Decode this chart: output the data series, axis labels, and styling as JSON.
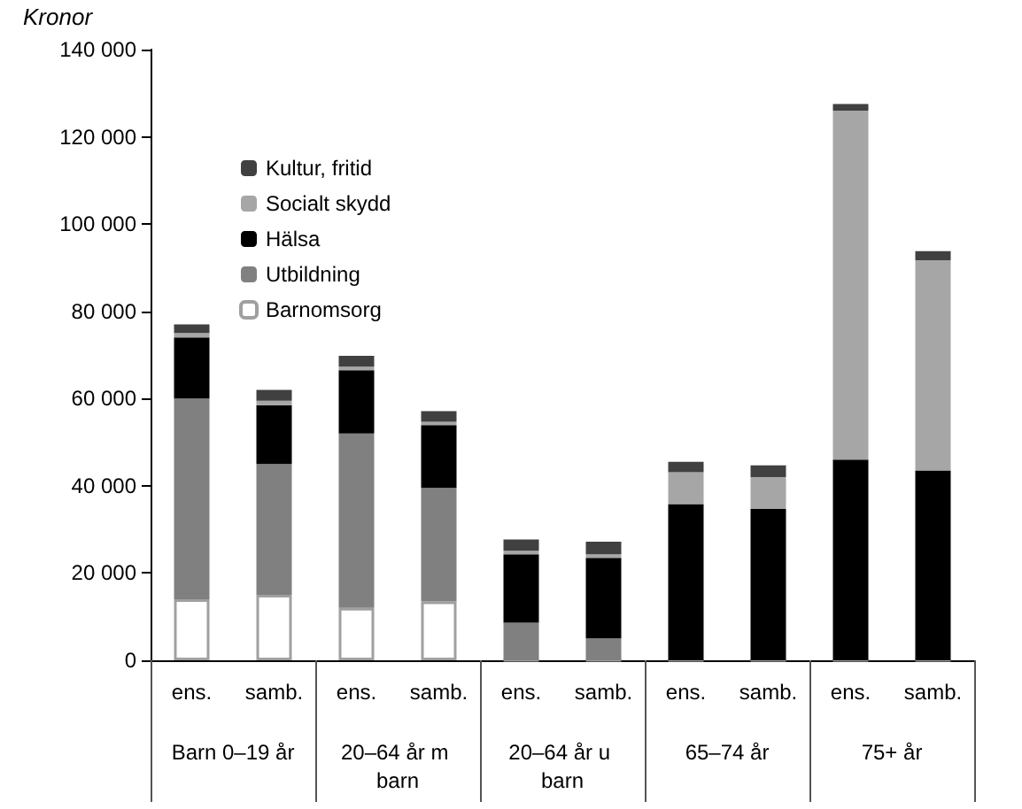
{
  "chart_data": {
    "type": "bar",
    "stacked": true,
    "ylabel": "Kronor",
    "categories": [
      "ens.",
      "samb.",
      "ens.",
      "samb.",
      "ens.",
      "samb.",
      "ens.",
      "samb.",
      "ens.",
      "samb."
    ],
    "annotations": [
      "Barn 0–19 år",
      "20–64 år m barn",
      "20–64 år u barn",
      "65–74 år",
      "75+ år"
    ],
    "series": [
      {
        "name": "Barnomsorg",
        "color": "#ffffff",
        "values": [
          14000,
          15000,
          12000,
          13500,
          0,
          0,
          0,
          0,
          0,
          0
        ]
      },
      {
        "name": "Utbildning",
        "color": "#808080",
        "values": [
          46000,
          30000,
          40000,
          26000,
          8600,
          5000,
          0,
          0,
          0,
          0
        ]
      },
      {
        "name": "Hälsa",
        "color": "#000000",
        "values": [
          14000,
          13500,
          14500,
          14400,
          15700,
          18500,
          35800,
          34700,
          46000,
          43500
        ]
      },
      {
        "name": "Socialt skydd",
        "color": "#a6a6a6",
        "values": [
          1000,
          1000,
          800,
          800,
          800,
          800,
          7300,
          7300,
          80000,
          48200
        ]
      },
      {
        "name": "Kultur, fritid",
        "color": "#404040",
        "values": [
          2000,
          2500,
          2500,
          2400,
          2600,
          2900,
          2400,
          2700,
          1500,
          2100
        ]
      }
    ],
    "ylim": [
      0,
      140000
    ],
    "yticks": [
      {
        "value": 0,
        "label": "0"
      },
      {
        "value": 20000,
        "label": "20 000"
      },
      {
        "value": 40000,
        "label": "40 000"
      },
      {
        "value": 60000,
        "label": "60 000"
      },
      {
        "value": 80000,
        "label": "80 000"
      },
      {
        "value": 100000,
        "label": "100 000"
      },
      {
        "value": 120000,
        "label": "120 000"
      },
      {
        "value": 140000,
        "label": "140 000"
      }
    ],
    "grid": false,
    "legend": "top left"
  }
}
